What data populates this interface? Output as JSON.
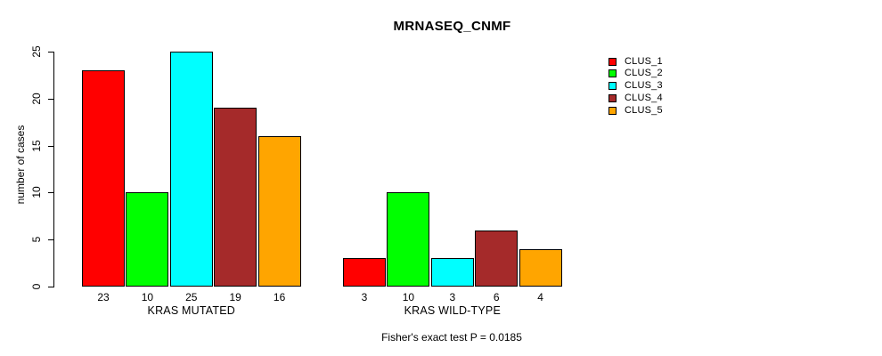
{
  "chart_data": {
    "type": "bar",
    "title": "MRNASEQ_CNMF",
    "ylabel": "number of cases",
    "annotation": "Fisher's exact test P = 0.0185",
    "groups": [
      "KRAS MUTATED",
      "KRAS WILD-TYPE"
    ],
    "series": [
      {
        "name": "CLUS_1",
        "color": "#FF0000",
        "values": [
          23,
          3
        ]
      },
      {
        "name": "CLUS_2",
        "color": "#00FF00",
        "values": [
          10,
          10
        ]
      },
      {
        "name": "CLUS_3",
        "color": "#00FFFF",
        "values": [
          25,
          3
        ]
      },
      {
        "name": "CLUS_4",
        "color": "#A52A2A",
        "values": [
          19,
          6
        ]
      },
      {
        "name": "CLUS_5",
        "color": "#FFA500",
        "values": [
          16,
          4
        ]
      }
    ],
    "yticks": [
      0,
      5,
      10,
      15,
      20,
      25
    ],
    "ylim": [
      0,
      25
    ],
    "grid": false,
    "bar_value_labels": true,
    "legend_position": "top-right",
    "axis_color": "#000000",
    "text_color": "#000000",
    "background_color": "#FFFFFF"
  }
}
